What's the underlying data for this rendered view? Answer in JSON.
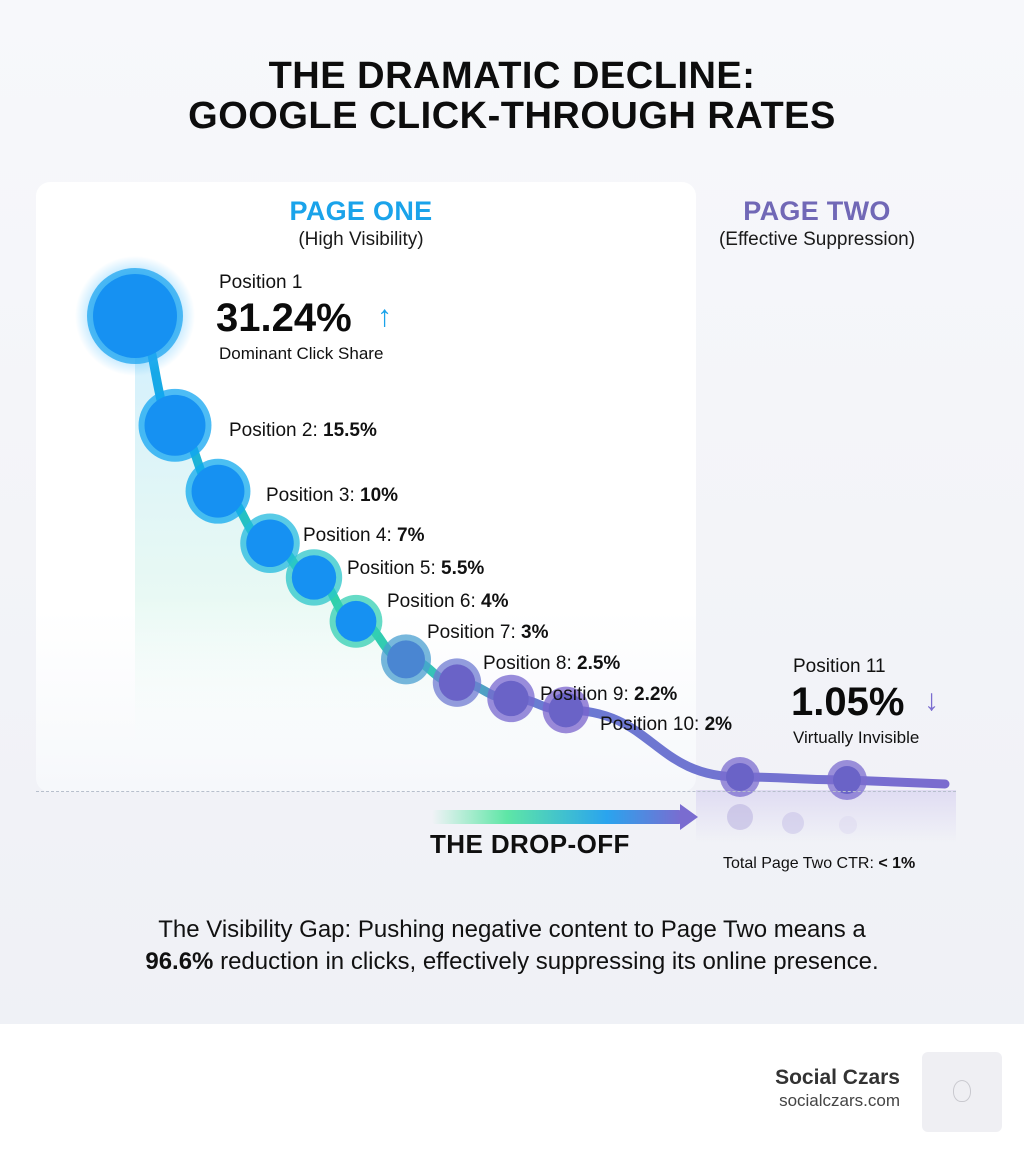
{
  "title": {
    "line1": "THE DRAMATIC DECLINE:",
    "line2": "GOOGLE CLICK-THROUGH RATES"
  },
  "sections": {
    "page_one": {
      "title": "PAGE ONE",
      "subtitle": "(High Visibility)",
      "color": "#1aa3ea"
    },
    "page_two": {
      "title": "PAGE TWO",
      "subtitle": "(Effective Suppression)",
      "color": "#7168b6"
    }
  },
  "highlights": {
    "position1": {
      "label": "Position 1",
      "value": "31.24%",
      "caption": "Dominant Click Share",
      "arrow": "↑",
      "arrow_color": "#1aa3ea"
    },
    "position11": {
      "label": "Position 11",
      "value": "1.05%",
      "caption": "Virtually Invisible",
      "arrow": "↓",
      "arrow_color": "#7a6cd0"
    }
  },
  "drop_off": {
    "label": "THE DROP-OFF",
    "total_label": "Total Page Two CTR:",
    "total_value": "< 1%"
  },
  "summary": {
    "line1": "The Visibility Gap: Pushing negative content to Page Two means a",
    "line2_bold": "96.6%",
    "line2_rest": " reduction in clicks, effectively suppressing its online presence."
  },
  "brand": {
    "name": "Social Czars",
    "url": "socialczars.com"
  },
  "chart_data": {
    "type": "line",
    "title": "GOOGLE CLICK-THROUGH RATES",
    "x": [
      1,
      2,
      3,
      4,
      5,
      6,
      7,
      8,
      9,
      10,
      11,
      12
    ],
    "labels": [
      "Position 1",
      "Position 2:",
      "Position 3:",
      "Position 4:",
      "Position 5:",
      "Position 6:",
      "Position 7:",
      "Position 8:",
      "Position 9:",
      "Position 10:",
      "Position 11",
      ""
    ],
    "value_labels": [
      "31.24%",
      "15.5%",
      "10%",
      "7%",
      "5.5%",
      "4%",
      "3%",
      "2.5%",
      "2.2%",
      "2%",
      "1.05%",
      ""
    ],
    "values": [
      31.24,
      15.5,
      10,
      7,
      5.5,
      4,
      3,
      2.5,
      2.2,
      2,
      1.05,
      1.0
    ],
    "groups": [
      "Page One",
      "Page One",
      "Page One",
      "Page One",
      "Page One",
      "Page One",
      "Page One",
      "Page One",
      "Page One",
      "Page One",
      "Page Two",
      "Page Two"
    ],
    "colors": [
      "#1ea6f0",
      "#12a5f2",
      "#10a9ee",
      "#22b9dd",
      "#2bc6c9",
      "#33cfb3",
      "#4a9fd0",
      "#6f7bd2",
      "#7767cf",
      "#7a63cc",
      "#7b6ccf",
      "#7b6ccf"
    ],
    "grid": false,
    "legend": "none"
  }
}
